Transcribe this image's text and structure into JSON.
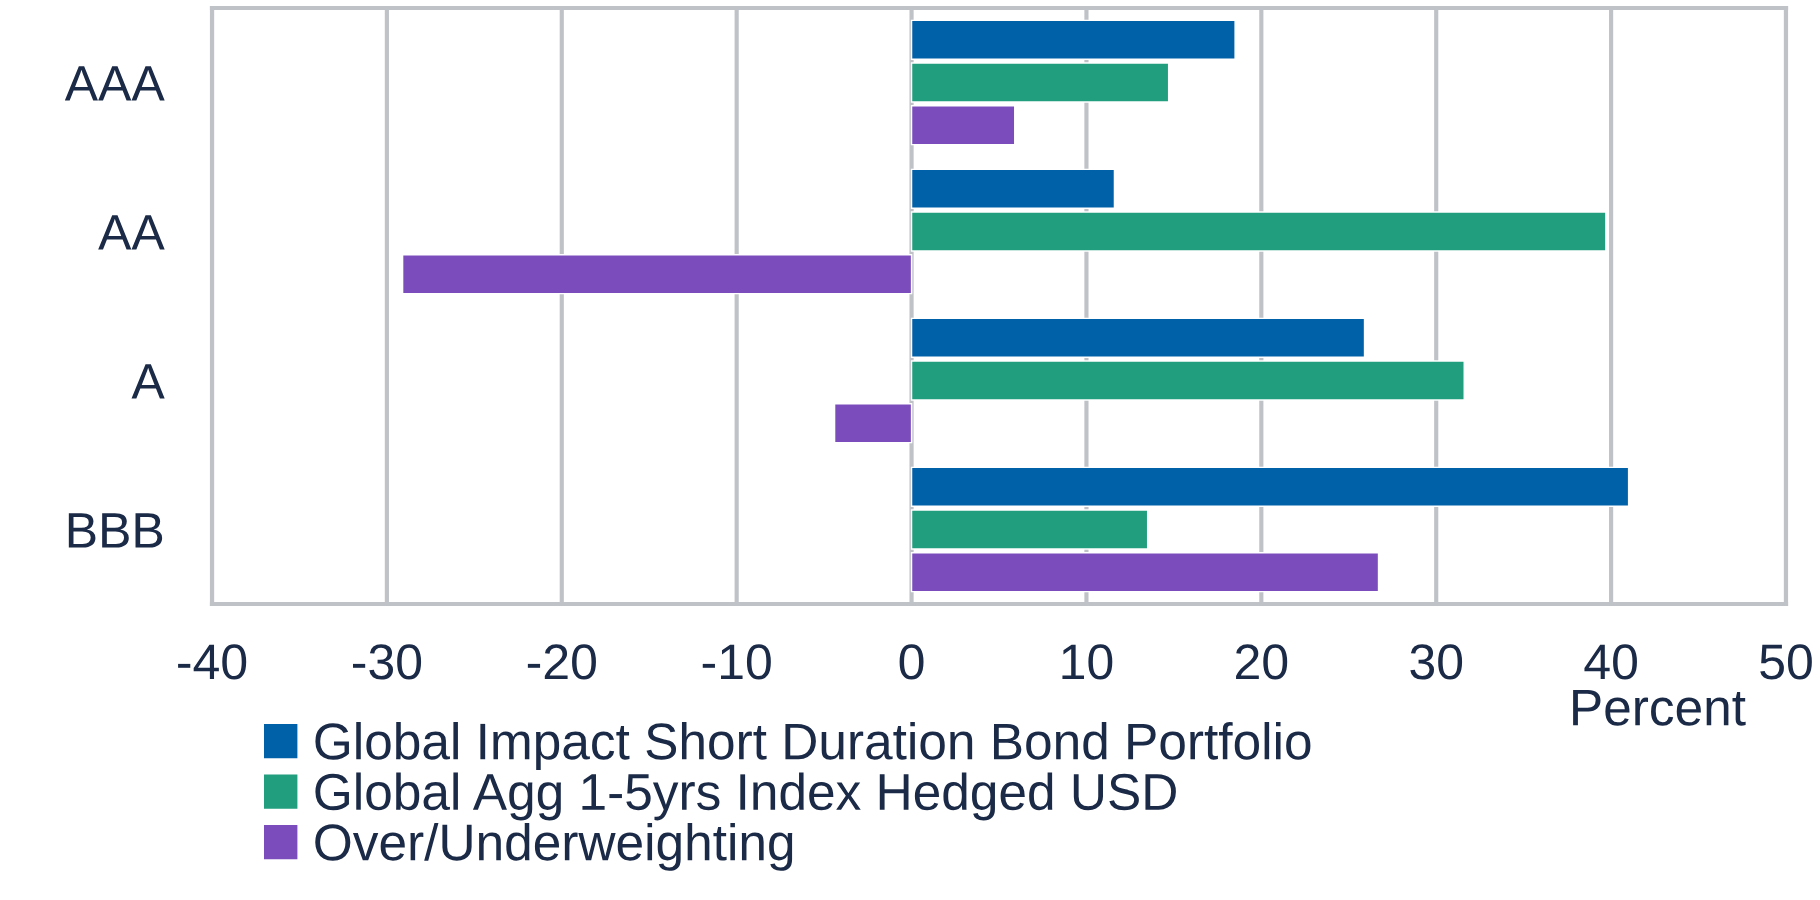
{
  "chart_data": {
    "type": "bar",
    "orientation": "horizontal",
    "categories": [
      "AAA",
      "AA",
      "A",
      "BBB"
    ],
    "series": [
      {
        "name": "Global Impact Short Duration Bond Portfolio",
        "color": "#0061a8",
        "values": [
          18.5,
          11.6,
          25.9,
          41.0
        ]
      },
      {
        "name": "Global Agg 1-5yrs Index Hedged USD",
        "color": "#219e7e",
        "values": [
          14.7,
          39.7,
          31.6,
          13.5
        ]
      },
      {
        "name": "Over/Underweighting",
        "color": "#7a4cbc",
        "values": [
          5.9,
          -29.1,
          -4.4,
          26.7
        ]
      }
    ],
    "xlim": [
      -40,
      50
    ],
    "xticks": [
      -40,
      -30,
      -20,
      -10,
      0,
      10,
      20,
      30,
      40,
      50
    ],
    "xlabel": "Percent",
    "grid": "x",
    "legend": "bottom"
  }
}
